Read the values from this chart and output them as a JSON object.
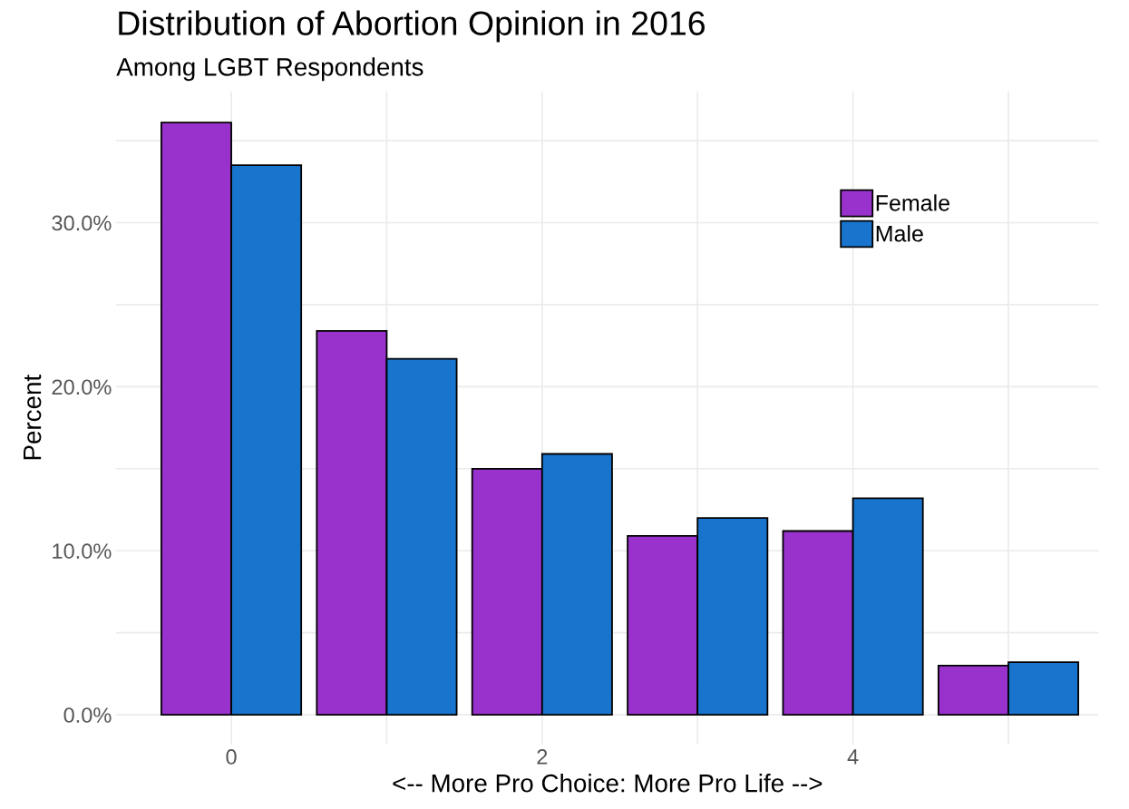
{
  "chart_data": {
    "type": "bar",
    "title": "Distribution of Abortion Opinion in 2016",
    "subtitle": "Among LGBT Respondents",
    "xlabel": "<-- More Pro Choice: More Pro Life -->",
    "ylabel": "Percent",
    "x": [
      0,
      1,
      2,
      3,
      4,
      5
    ],
    "series": [
      {
        "name": "Female",
        "color": "#9932cc",
        "values": [
          36.1,
          23.4,
          15.0,
          10.9,
          11.2,
          3.0
        ]
      },
      {
        "name": "Male",
        "color": "#1874cd",
        "values": [
          33.5,
          21.7,
          15.9,
          12.0,
          13.2,
          3.2
        ]
      }
    ],
    "xlim": [
      -0.74,
      5.58
    ],
    "xticks": [
      0,
      {
        "value": 1,
        "label": null
      },
      2,
      {
        "value": 3,
        "label": null
      },
      4,
      {
        "value": 5,
        "label": null
      }
    ],
    "ylim": [
      -1.8,
      38.0
    ],
    "yticks": [
      {
        "value": 0,
        "label": "0.0%"
      },
      {
        "value": 5,
        "label": null
      },
      {
        "value": 10,
        "label": "10.0%"
      },
      {
        "value": 15,
        "label": null
      },
      {
        "value": 20,
        "label": "20.0%"
      },
      {
        "value": 25,
        "label": null
      },
      {
        "value": 30,
        "label": "30.0%"
      },
      {
        "value": 35,
        "label": null
      }
    ],
    "grid": true,
    "legend": "top right"
  }
}
